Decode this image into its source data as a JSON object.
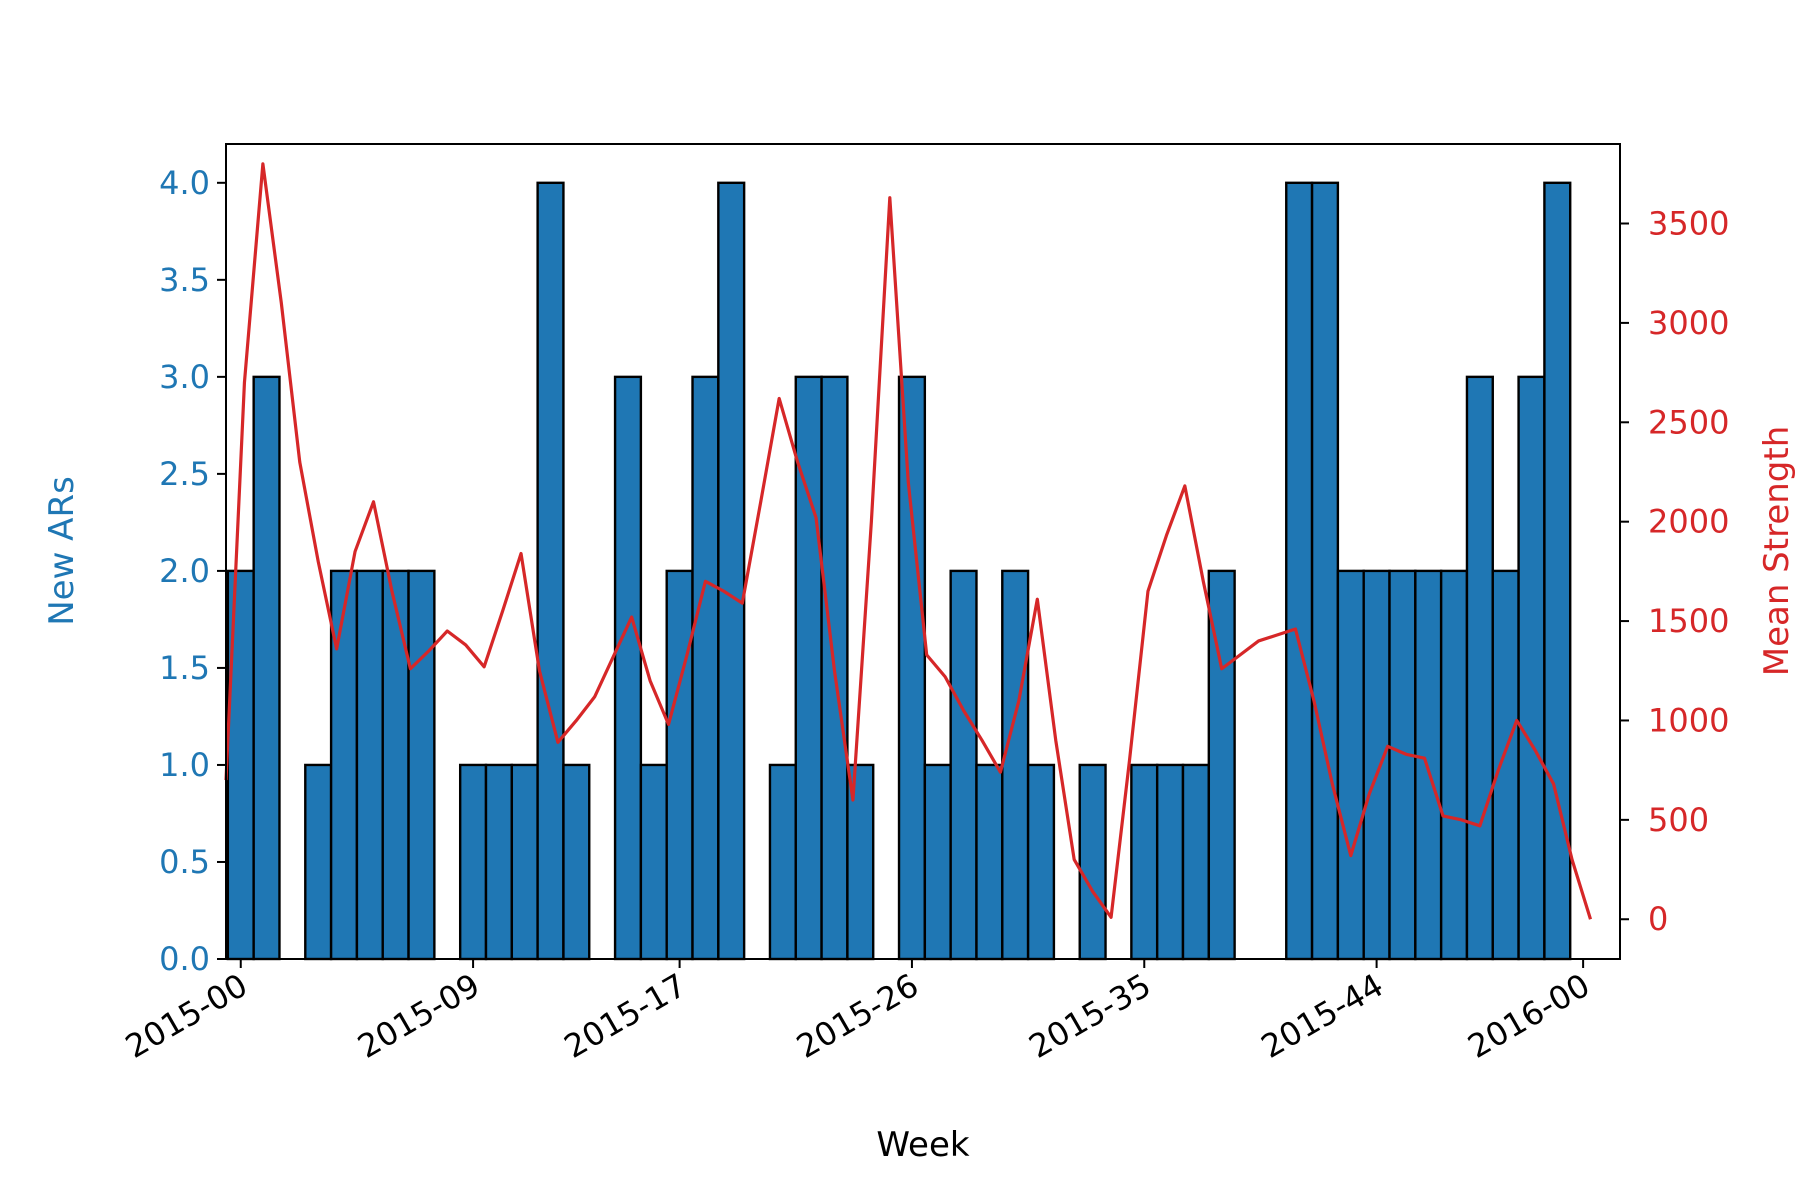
{
  "chart_data": {
    "type": "bar",
    "xlabel": "Week",
    "ylabel_left": "New ARs",
    "ylabel_right": "Mean Strength",
    "colors": {
      "bars": "#1f77b4",
      "bar_edge": "#000000",
      "line": "#d62728",
      "left_axis_text": "#1f77b4",
      "right_axis_text": "#d62728"
    },
    "x_range": [
      "2014-12-24",
      "2016-01-06"
    ],
    "x_ticks": [
      {
        "date": "2014-12-28",
        "label": "2015-00"
      },
      {
        "date": "2015-03-01",
        "label": "2015-09"
      },
      {
        "date": "2015-04-26",
        "label": "2015-17"
      },
      {
        "date": "2015-06-28",
        "label": "2015-26"
      },
      {
        "date": "2015-08-30",
        "label": "2015-35"
      },
      {
        "date": "2015-11-01",
        "label": "2015-44"
      },
      {
        "date": "2015-12-27",
        "label": "2016-00"
      }
    ],
    "ylim_left": [
      0,
      4.2
    ],
    "yticks_left": [
      "0.0",
      "0.5",
      "1.0",
      "1.5",
      "2.0",
      "2.5",
      "3.0",
      "3.5",
      "4.0"
    ],
    "ylim_right": [
      -200,
      3900
    ],
    "yticks_right": [
      "0",
      "500",
      "1000",
      "1500",
      "2000",
      "2500",
      "3000",
      "3500"
    ],
    "bar_width_days": 7,
    "bars": {
      "name": "New ARs",
      "x": [
        "2014-12-28",
        "2015-01-04",
        "2015-01-11",
        "2015-01-18",
        "2015-01-25",
        "2015-02-01",
        "2015-02-08",
        "2015-02-15",
        "2015-02-22",
        "2015-03-01",
        "2015-03-08",
        "2015-03-15",
        "2015-03-22",
        "2015-03-29",
        "2015-04-05",
        "2015-04-12",
        "2015-04-19",
        "2015-04-26",
        "2015-05-03",
        "2015-05-10",
        "2015-05-17",
        "2015-05-24",
        "2015-05-31",
        "2015-06-07",
        "2015-06-14",
        "2015-06-21",
        "2015-06-28",
        "2015-07-05",
        "2015-07-12",
        "2015-07-19",
        "2015-07-26",
        "2015-08-02",
        "2015-08-09",
        "2015-08-16",
        "2015-08-23",
        "2015-08-30",
        "2015-09-06",
        "2015-09-13",
        "2015-09-20",
        "2015-09-27",
        "2015-10-04",
        "2015-10-11",
        "2015-10-18",
        "2015-10-25",
        "2015-11-01",
        "2015-11-08",
        "2015-11-15",
        "2015-11-22",
        "2015-11-29",
        "2015-12-06",
        "2015-12-13",
        "2015-12-20",
        "2015-12-27"
      ],
      "values": [
        2,
        3,
        0,
        1,
        2,
        2,
        2,
        2,
        0,
        1,
        1,
        1,
        4,
        1,
        0,
        3,
        1,
        2,
        3,
        4,
        0,
        1,
        3,
        3,
        1,
        0,
        3,
        1,
        2,
        1,
        2,
        1,
        0,
        1,
        0,
        1,
        1,
        1,
        2,
        0,
        0,
        4,
        4,
        2,
        2,
        2,
        2,
        2,
        3,
        2,
        3,
        4,
        0
      ]
    },
    "line": {
      "name": "Mean Strength",
      "x": [
        "2014-12-24",
        "2014-12-29",
        "2015-01-03",
        "2015-01-08",
        "2015-01-13",
        "2015-01-18",
        "2015-01-23",
        "2015-01-28",
        "2015-02-02",
        "2015-02-07",
        "2015-02-12",
        "2015-02-17",
        "2015-02-22",
        "2015-02-27",
        "2015-03-04",
        "2015-03-09",
        "2015-03-14",
        "2015-03-19",
        "2015-03-24",
        "2015-03-29",
        "2015-04-03",
        "2015-04-08",
        "2015-04-13",
        "2015-04-18",
        "2015-04-23",
        "2015-04-28",
        "2015-05-03",
        "2015-05-08",
        "2015-05-13",
        "2015-05-18",
        "2015-05-23",
        "2015-05-28",
        "2015-06-02",
        "2015-06-07",
        "2015-06-12",
        "2015-06-17",
        "2015-06-22",
        "2015-06-27",
        "2015-07-02",
        "2015-07-07",
        "2015-07-12",
        "2015-07-17",
        "2015-07-22",
        "2015-07-27",
        "2015-08-01",
        "2015-08-06",
        "2015-08-11",
        "2015-08-16",
        "2015-08-21",
        "2015-08-26",
        "2015-08-31",
        "2015-09-05",
        "2015-09-10",
        "2015-09-15",
        "2015-09-20",
        "2015-09-25",
        "2015-09-30",
        "2015-10-05",
        "2015-10-10",
        "2015-10-15",
        "2015-10-20",
        "2015-10-25",
        "2015-10-30",
        "2015-11-04",
        "2015-11-09",
        "2015-11-14",
        "2015-11-19",
        "2015-11-24",
        "2015-11-29",
        "2015-12-04",
        "2015-12-09",
        "2015-12-14",
        "2015-12-19",
        "2015-12-24",
        "2015-12-29"
      ],
      "values": [
        700,
        2700,
        3800,
        3100,
        2300,
        1800,
        1360,
        1850,
        2100,
        1650,
        1260,
        1350,
        1450,
        1380,
        1270,
        1550,
        1840,
        1250,
        890,
        1000,
        1120,
        1320,
        1520,
        1200,
        980,
        1330,
        1700,
        1650,
        1590,
        2100,
        2620,
        2300,
        2020,
        1250,
        600,
        2000,
        3630,
        2200,
        1330,
        1220,
        1050,
        900,
        740,
        1100,
        1610,
        900,
        300,
        140,
        10,
        800,
        1650,
        1930,
        2180,
        1700,
        1260,
        1330,
        1400,
        1430,
        1460,
        1100,
        680,
        320,
        630,
        870,
        830,
        810,
        520,
        500,
        470,
        750,
        1000,
        850,
        680,
        300,
        0
      ]
    }
  }
}
